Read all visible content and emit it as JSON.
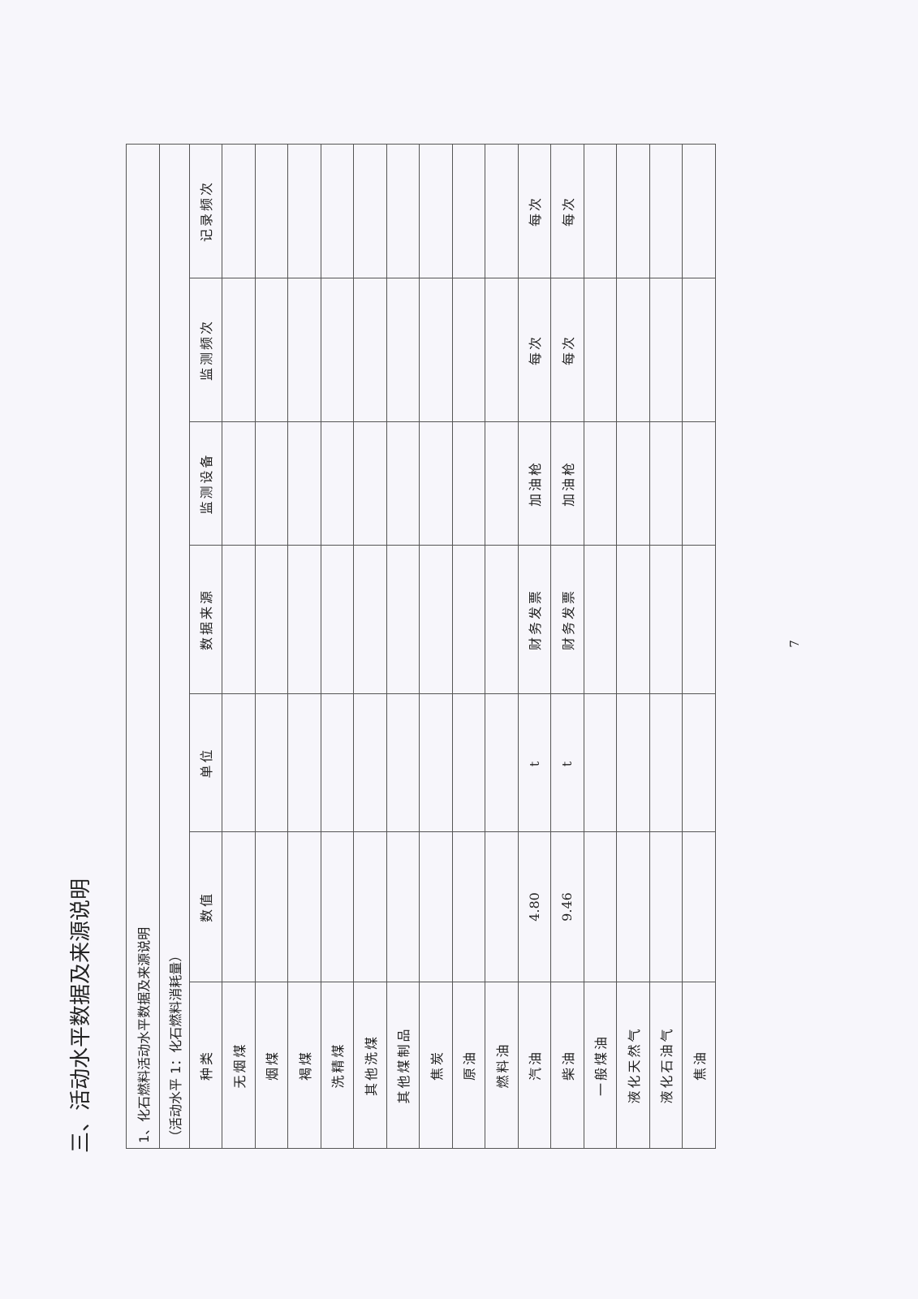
{
  "heading": "三、活动水平数据及来源说明",
  "table": {
    "title": "1、化石燃料活动水平数据及来源说明",
    "subtitle": "（活动水平 1：化石燃料消耗量）",
    "headers": [
      "种类",
      "数值",
      "单位",
      "数据来源",
      "监测设备",
      "监测频次",
      "记录频次"
    ],
    "rows": [
      [
        "无烟煤",
        "",
        "",
        "",
        "",
        "",
        ""
      ],
      [
        "烟煤",
        "",
        "",
        "",
        "",
        "",
        ""
      ],
      [
        "褐煤",
        "",
        "",
        "",
        "",
        "",
        ""
      ],
      [
        "洗精煤",
        "",
        "",
        "",
        "",
        "",
        ""
      ],
      [
        "其他洗煤",
        "",
        "",
        "",
        "",
        "",
        ""
      ],
      [
        "其他煤制品",
        "",
        "",
        "",
        "",
        "",
        ""
      ],
      [
        "焦炭",
        "",
        "",
        "",
        "",
        "",
        ""
      ],
      [
        "原油",
        "",
        "",
        "",
        "",
        "",
        ""
      ],
      [
        "燃料油",
        "",
        "",
        "",
        "",
        "",
        ""
      ],
      [
        "汽油",
        "4.80",
        "t",
        "财务发票",
        "加油枪",
        "每次",
        "每次"
      ],
      [
        "柴油",
        "9.46",
        "t",
        "财务发票",
        "加油枪",
        "每次",
        "每次"
      ],
      [
        "一般煤油",
        "",
        "",
        "",
        "",
        "",
        ""
      ],
      [
        "液化天然气",
        "",
        "",
        "",
        "",
        "",
        ""
      ],
      [
        "液化石油气",
        "",
        "",
        "",
        "",
        "",
        ""
      ],
      [
        "焦油",
        "",
        "",
        "",
        "",
        "",
        ""
      ]
    ]
  },
  "page_number": "7"
}
